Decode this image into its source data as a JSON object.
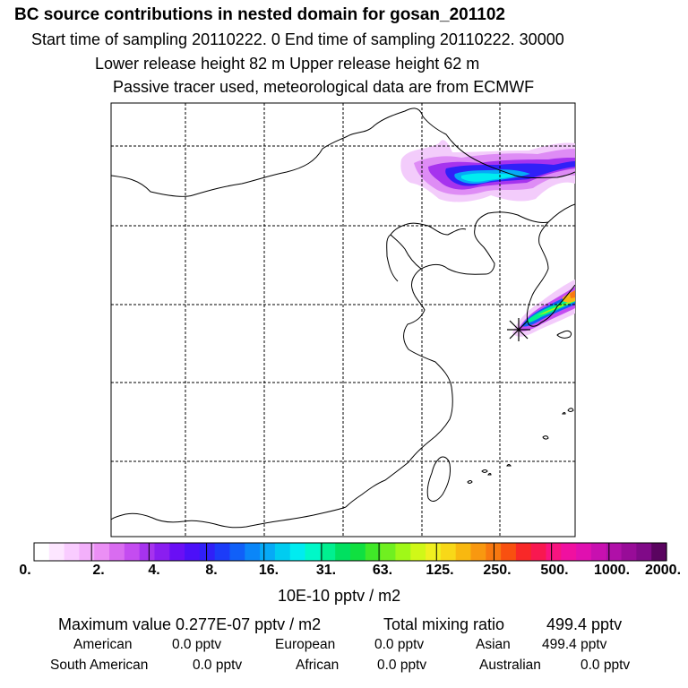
{
  "chart_data": {
    "type": "heatmap",
    "title": "BC  source contributions in nested domain for gosan_201102",
    "subtitle_lines": [
      "Start time of sampling 20110222.     0     End time of sampling 20110222. 30000",
      "Lower release height   82 m           Upper release height   62 m",
      "Passive tracer used, meteorological data are from ECMWF"
    ],
    "colorbar": {
      "tick_labels": [
        "0.",
        "2.",
        "4.",
        "8.",
        "16.",
        "31.",
        "63.",
        "125.",
        "250.",
        "500.",
        "1000.",
        "2000."
      ],
      "unit_label": "10E-10 pptv / m2",
      "colors": [
        "#ffffff",
        "#fde6ff",
        "#f9ccff",
        "#f3b0fb",
        "#eb8ff5",
        "#d96cf0",
        "#c44cf0",
        "#a633ee",
        "#8a1ef0",
        "#6a0ff5",
        "#4c10f8",
        "#3020f8",
        "#1c3cf8",
        "#1060f8",
        "#0a86f8",
        "#06aaf6",
        "#00ccf0",
        "#00ecf0",
        "#00f8c8",
        "#00f090",
        "#00e060",
        "#10e040",
        "#40e828",
        "#70f020",
        "#a0f818",
        "#d0f818",
        "#f0f020",
        "#f8d818",
        "#f8b810",
        "#f89810",
        "#f87810",
        "#f85010",
        "#f82828",
        "#f81850",
        "#f81480",
        "#f010a0",
        "#e010b0",
        "#c810b0",
        "#b010a8",
        "#980c98",
        "#800a88",
        "#5a0460"
      ],
      "color_ticks": [
        0,
        4,
        8,
        13,
        17,
        23,
        28,
        34,
        39,
        45,
        52
      ]
    },
    "map_grid": {
      "vertical_lines": 5,
      "horizontal_lines": 5
    },
    "receptor": "gosan"
  },
  "summary": {
    "max_label": "Maximum value  0.277E-07 pptv / m2",
    "total_label": "Total mixing ratio",
    "total_value": "499.4 pptv",
    "regions": [
      {
        "name": "American",
        "value": "0.0 pptv"
      },
      {
        "name": "European",
        "value": "0.0 pptv"
      },
      {
        "name": "Asian",
        "value": "499.4 pptv"
      },
      {
        "name": "South American",
        "value": "0.0 pptv"
      },
      {
        "name": "African",
        "value": "0.0 pptv"
      },
      {
        "name": "Australian",
        "value": "0.0 pptv"
      }
    ]
  }
}
